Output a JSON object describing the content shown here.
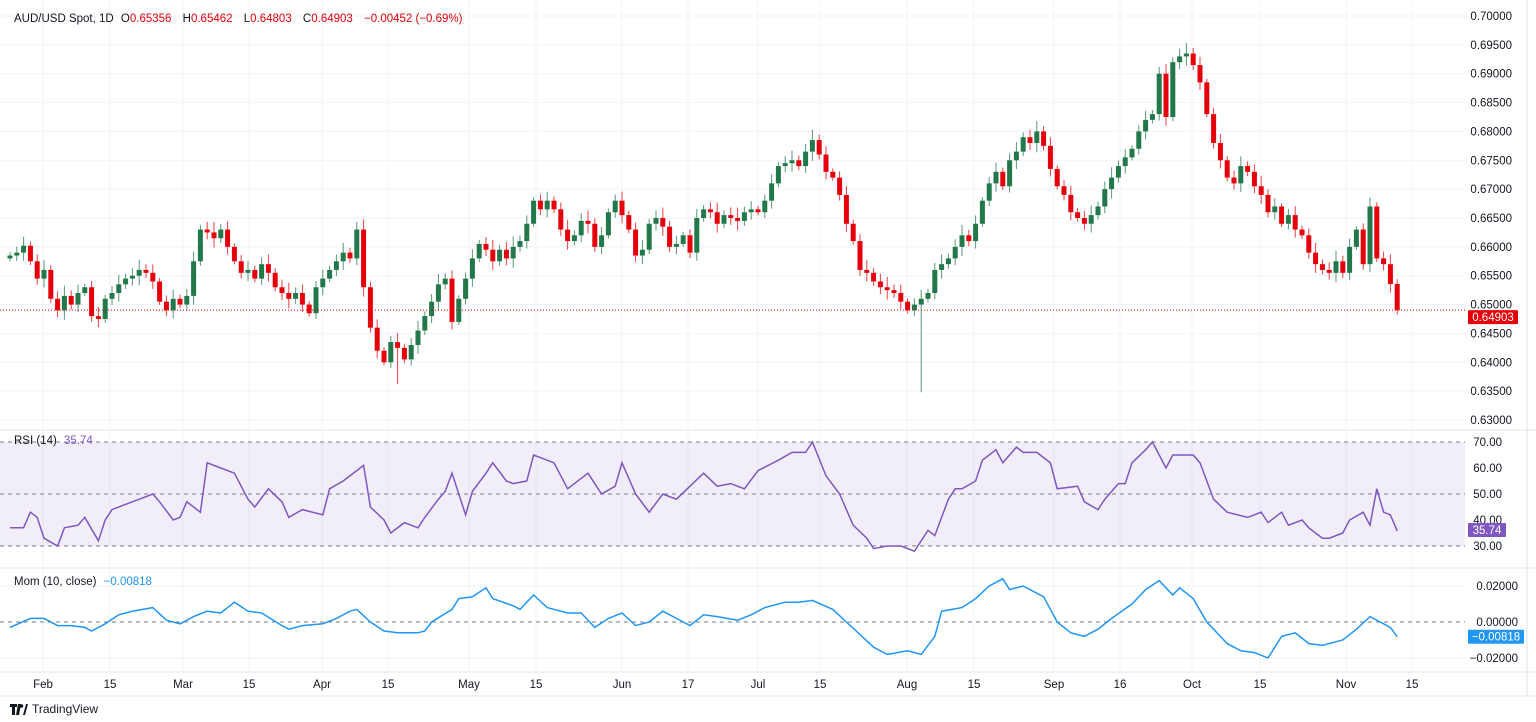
{
  "header": {
    "symbol": "AUD/USD Spot, 1D",
    "open_label": "O",
    "open": "0.65356",
    "high_label": "H",
    "high": "0.65462",
    "low_label": "L",
    "low": "0.64803",
    "close_label": "C",
    "close": "0.64903",
    "change": "−0.00452 (−0.69%)"
  },
  "colors": {
    "up": "#22784a",
    "down": "#e5000a",
    "rsi": "#7e57c2",
    "mom": "#2196f3",
    "grid": "#f0f3fa"
  },
  "price_axis": {
    "ticks": [
      "0.70000",
      "0.69500",
      "0.69000",
      "0.68500",
      "0.68000",
      "0.67500",
      "0.67000",
      "0.66500",
      "0.66000",
      "0.65500",
      "0.65000",
      "0.64500",
      "0.64000",
      "0.63500",
      "0.63000"
    ],
    "last_price_label": "0.64903",
    "last_price": 0.64903
  },
  "rsi": {
    "label": "RSI (14)",
    "value": "35.74",
    "ticks": [
      "70.00",
      "60.00",
      "50.00",
      "40.00",
      "30.00"
    ],
    "series": [
      [
        0,
        37
      ],
      [
        2,
        37
      ],
      [
        3,
        43
      ],
      [
        4,
        41
      ],
      [
        5,
        33
      ],
      [
        7,
        30
      ],
      [
        8,
        37
      ],
      [
        10,
        38
      ],
      [
        11,
        41
      ],
      [
        13,
        32
      ],
      [
        14,
        40
      ],
      [
        15,
        44
      ],
      [
        18,
        47
      ],
      [
        21,
        50
      ],
      [
        22,
        47
      ],
      [
        24,
        40
      ],
      [
        25,
        41
      ],
      [
        26,
        47
      ],
      [
        28,
        43
      ],
      [
        29,
        62
      ],
      [
        31,
        60
      ],
      [
        33,
        58
      ],
      [
        35,
        48
      ],
      [
        36,
        45
      ],
      [
        38,
        52
      ],
      [
        40,
        47
      ],
      [
        41,
        41
      ],
      [
        43,
        44
      ],
      [
        46,
        42
      ],
      [
        47,
        52
      ],
      [
        49,
        55
      ],
      [
        52,
        61
      ],
      [
        53,
        45
      ],
      [
        55,
        40
      ],
      [
        56,
        35
      ],
      [
        58,
        39
      ],
      [
        60,
        37
      ],
      [
        61,
        41
      ],
      [
        63,
        48
      ],
      [
        64,
        51
      ],
      [
        65,
        58
      ],
      [
        67,
        42
      ],
      [
        68,
        51
      ],
      [
        70,
        58
      ],
      [
        71,
        62
      ],
      [
        73,
        55
      ],
      [
        74,
        54
      ],
      [
        76,
        55
      ],
      [
        77,
        65
      ],
      [
        79,
        63
      ],
      [
        80,
        62
      ],
      [
        82,
        52
      ],
      [
        85,
        58
      ],
      [
        87,
        50
      ],
      [
        89,
        53
      ],
      [
        90,
        62
      ],
      [
        92,
        50
      ],
      [
        94,
        43
      ],
      [
        96,
        50
      ],
      [
        98,
        48
      ],
      [
        100,
        53
      ],
      [
        102,
        58
      ],
      [
        104,
        53
      ],
      [
        106,
        54
      ],
      [
        108,
        52
      ],
      [
        110,
        59
      ],
      [
        113,
        63
      ],
      [
        115,
        66
      ],
      [
        117,
        66
      ],
      [
        118,
        70
      ],
      [
        120,
        57
      ],
      [
        122,
        50
      ],
      [
        124,
        38
      ],
      [
        126,
        33
      ],
      [
        127,
        29
      ],
      [
        129,
        30
      ],
      [
        131,
        30
      ],
      [
        133,
        28
      ],
      [
        135,
        36
      ],
      [
        136,
        34
      ],
      [
        138,
        48
      ],
      [
        139,
        52
      ],
      [
        140,
        52
      ],
      [
        142,
        55
      ],
      [
        143,
        63
      ],
      [
        145,
        67
      ],
      [
        146,
        62
      ],
      [
        148,
        68
      ],
      [
        149,
        66
      ],
      [
        151,
        66
      ],
      [
        153,
        62
      ],
      [
        154,
        52
      ],
      [
        157,
        53
      ],
      [
        158,
        47
      ],
      [
        160,
        44
      ],
      [
        161,
        48
      ],
      [
        163,
        54
      ],
      [
        164,
        54
      ],
      [
        165,
        62
      ],
      [
        167,
        67
      ],
      [
        168,
        70
      ],
      [
        170,
        60
      ],
      [
        171,
        65
      ],
      [
        174,
        65
      ],
      [
        175,
        62
      ],
      [
        177,
        48
      ],
      [
        179,
        43
      ],
      [
        182,
        41
      ],
      [
        184,
        43
      ],
      [
        185,
        39
      ],
      [
        187,
        43
      ],
      [
        188,
        38
      ],
      [
        190,
        40
      ],
      [
        191,
        37
      ],
      [
        193,
        33
      ],
      [
        194,
        33
      ],
      [
        196,
        35
      ],
      [
        197,
        40
      ],
      [
        199,
        43
      ],
      [
        200,
        38
      ],
      [
        201,
        52
      ],
      [
        202,
        43
      ],
      [
        203,
        42
      ],
      [
        204,
        35.74
      ]
    ]
  },
  "mom": {
    "label": "Mom (10, close)",
    "value": "−0.00818",
    "ticks": [
      "0.02000",
      "0.00000",
      "−0.02000"
    ],
    "series": [
      [
        0,
        -0.003
      ],
      [
        3,
        0.002
      ],
      [
        5,
        0.002
      ],
      [
        7,
        -0.002
      ],
      [
        9,
        -0.002
      ],
      [
        11,
        -0.003
      ],
      [
        12,
        -0.005
      ],
      [
        14,
        -0.001
      ],
      [
        16,
        0.004
      ],
      [
        18,
        0.006
      ],
      [
        21,
        0.008
      ],
      [
        23,
        0.001
      ],
      [
        25,
        -0.001
      ],
      [
        27,
        0.003
      ],
      [
        29,
        0.006
      ],
      [
        31,
        0.005
      ],
      [
        33,
        0.011
      ],
      [
        35,
        0.006
      ],
      [
        37,
        0.005
      ],
      [
        40,
        -0.002
      ],
      [
        41,
        -0.004
      ],
      [
        43,
        -0.002
      ],
      [
        46,
        -0.001
      ],
      [
        48,
        0.002
      ],
      [
        50,
        0.006
      ],
      [
        51,
        0.007
      ],
      [
        53,
        0.0
      ],
      [
        55,
        -0.005
      ],
      [
        57,
        -0.006
      ],
      [
        60,
        -0.006
      ],
      [
        61,
        -0.005
      ],
      [
        62,
        0.0
      ],
      [
        65,
        0.007
      ],
      [
        66,
        0.013
      ],
      [
        68,
        0.014
      ],
      [
        70,
        0.019
      ],
      [
        71,
        0.013
      ],
      [
        74,
        0.009
      ],
      [
        75,
        0.007
      ],
      [
        77,
        0.015
      ],
      [
        79,
        0.008
      ],
      [
        82,
        0.005
      ],
      [
        84,
        0.005
      ],
      [
        86,
        -0.003
      ],
      [
        88,
        0.002
      ],
      [
        90,
        0.005
      ],
      [
        92,
        -0.002
      ],
      [
        94,
        0.0
      ],
      [
        96,
        0.006
      ],
      [
        99,
        0.0
      ],
      [
        100,
        -0.002
      ],
      [
        102,
        0.004
      ],
      [
        104,
        0.003
      ],
      [
        107,
        0.001
      ],
      [
        109,
        0.004
      ],
      [
        111,
        0.008
      ],
      [
        114,
        0.011
      ],
      [
        116,
        0.011
      ],
      [
        118,
        0.012
      ],
      [
        121,
        0.007
      ],
      [
        123,
        0.0
      ],
      [
        125,
        -0.007
      ],
      [
        127,
        -0.014
      ],
      [
        129,
        -0.018
      ],
      [
        132,
        -0.016
      ],
      [
        134,
        -0.018
      ],
      [
        136,
        -0.008
      ],
      [
        137,
        0.006
      ],
      [
        140,
        0.008
      ],
      [
        142,
        0.013
      ],
      [
        144,
        0.02
      ],
      [
        146,
        0.024
      ],
      [
        147,
        0.018
      ],
      [
        149,
        0.02
      ],
      [
        151,
        0.016
      ],
      [
        152,
        0.014
      ],
      [
        154,
        0.0
      ],
      [
        156,
        -0.006
      ],
      [
        158,
        -0.008
      ],
      [
        160,
        -0.004
      ],
      [
        162,
        0.002
      ],
      [
        165,
        0.01
      ],
      [
        167,
        0.018
      ],
      [
        169,
        0.023
      ],
      [
        171,
        0.015
      ],
      [
        172,
        0.019
      ],
      [
        174,
        0.013
      ],
      [
        176,
        0.0
      ],
      [
        179,
        -0.012
      ],
      [
        181,
        -0.016
      ],
      [
        183,
        -0.017
      ],
      [
        185,
        -0.02
      ],
      [
        187,
        -0.008
      ],
      [
        189,
        -0.006
      ],
      [
        191,
        -0.012
      ],
      [
        193,
        -0.013
      ],
      [
        196,
        -0.01
      ],
      [
        198,
        -0.004
      ],
      [
        200,
        0.003
      ],
      [
        202,
        -0.001
      ],
      [
        203,
        -0.003
      ],
      [
        204,
        -0.00818
      ]
    ]
  },
  "date_axis": [
    "Feb",
    "15",
    "Mar",
    "15",
    "Apr",
    "15",
    "May",
    "15",
    "Jun",
    "17",
    "Jul",
    "15",
    "Aug",
    "15",
    "Sep",
    "16",
    "Oct",
    "15",
    "Nov",
    "15"
  ],
  "closes": [
    0.6585,
    0.659,
    0.6602,
    0.6575,
    0.6545,
    0.656,
    0.651,
    0.649,
    0.6515,
    0.65,
    0.652,
    0.653,
    0.648,
    0.6475,
    0.651,
    0.652,
    0.6535,
    0.6545,
    0.655,
    0.656,
    0.6555,
    0.654,
    0.6505,
    0.649,
    0.651,
    0.65,
    0.6515,
    0.6575,
    0.663,
    0.6625,
    0.6615,
    0.663,
    0.66,
    0.6575,
    0.6555,
    0.656,
    0.6545,
    0.657,
    0.6555,
    0.653,
    0.652,
    0.651,
    0.652,
    0.65,
    0.6485,
    0.653,
    0.6545,
    0.656,
    0.6575,
    0.659,
    0.658,
    0.663,
    0.653,
    0.646,
    0.642,
    0.64,
    0.6435,
    0.6425,
    0.6405,
    0.643,
    0.6455,
    0.648,
    0.6505,
    0.6535,
    0.6545,
    0.647,
    0.651,
    0.6545,
    0.658,
    0.6605,
    0.6595,
    0.6575,
    0.6595,
    0.658,
    0.66,
    0.661,
    0.664,
    0.668,
    0.6665,
    0.668,
    0.6665,
    0.663,
    0.661,
    0.662,
    0.6645,
    0.664,
    0.66,
    0.662,
    0.666,
    0.668,
    0.6655,
    0.663,
    0.6585,
    0.6595,
    0.664,
    0.665,
    0.6635,
    0.66,
    0.6605,
    0.662,
    0.659,
    0.665,
    0.6665,
    0.666,
    0.664,
    0.6655,
    0.665,
    0.6645,
    0.666,
    0.6665,
    0.666,
    0.668,
    0.671,
    0.674,
    0.6745,
    0.675,
    0.674,
    0.6765,
    0.6785,
    0.676,
    0.673,
    0.672,
    0.669,
    0.664,
    0.661,
    0.656,
    0.6555,
    0.654,
    0.653,
    0.6525,
    0.652,
    0.6505,
    0.649,
    0.65,
    0.651,
    0.652,
    0.656,
    0.657,
    0.658,
    0.66,
    0.662,
    0.661,
    0.664,
    0.668,
    0.671,
    0.673,
    0.6705,
    0.675,
    0.6765,
    0.679,
    0.678,
    0.68,
    0.6775,
    0.6735,
    0.6705,
    0.669,
    0.666,
    0.665,
    0.664,
    0.6655,
    0.667,
    0.67,
    0.672,
    0.674,
    0.6755,
    0.677,
    0.68,
    0.682,
    0.683,
    0.69,
    0.6825,
    0.692,
    0.693,
    0.6935,
    0.6915,
    0.6885,
    0.683,
    0.678,
    0.675,
    0.672,
    0.671,
    0.674,
    0.673,
    0.6705,
    0.669,
    0.666,
    0.667,
    0.664,
    0.6655,
    0.663,
    0.662,
    0.659,
    0.657,
    0.656,
    0.6555,
    0.6575,
    0.6555,
    0.66,
    0.663,
    0.657,
    0.667,
    0.658,
    0.657,
    0.65356,
    0.64903
  ],
  "notable_lows": {
    "134": 0.6348,
    "57": 0.6362
  },
  "footer": {
    "brand": "TradingView"
  }
}
